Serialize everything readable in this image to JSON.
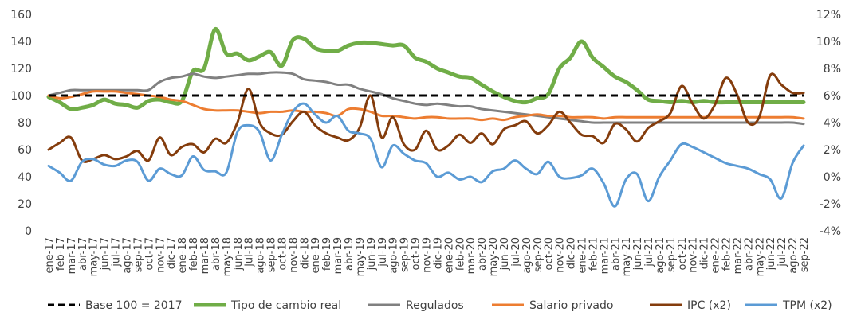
{
  "chart_data": {
    "type": "line",
    "title": "",
    "xlabel": "",
    "ylabel": "",
    "y_left": {
      "min": 0,
      "max": 160,
      "step": 20,
      "ticks": [
        "0",
        "20",
        "40",
        "60",
        "80",
        "100",
        "120",
        "140",
        "160"
      ]
    },
    "y_right": {
      "min": -4,
      "max": 12,
      "step": 2,
      "unit": "%",
      "ticks": [
        "-4%",
        "-2%",
        "0%",
        "2%",
        "4%",
        "6%",
        "8%",
        "10%",
        "12%"
      ]
    },
    "grid": false,
    "legend_position": "bottom",
    "categories": [
      "ene-17",
      "feb-17",
      "mar-17",
      "abr-17",
      "may-17",
      "jun-17",
      "jul-17",
      "ago-17",
      "sep-17",
      "oct-17",
      "nov-17",
      "dic-17",
      "ene-18",
      "feb-18",
      "mar-18",
      "abr-18",
      "may-18",
      "jun-18",
      "jul-18",
      "ago-18",
      "sep-18",
      "oct-18",
      "nov-18",
      "dic-18",
      "ene-19",
      "feb-19",
      "mar-19",
      "abr-19",
      "may-19",
      "jun-19",
      "jul-19",
      "ago-19",
      "sep-19",
      "oct-19",
      "nov-19",
      "dic-19",
      "ene-20",
      "feb-20",
      "mar-20",
      "abr-20",
      "may-20",
      "jun-20",
      "jul-20",
      "ago-20",
      "sep-20",
      "oct-20",
      "nov-20",
      "dic-20",
      "ene-21",
      "feb-21",
      "mar-21",
      "abr-21",
      "may-21",
      "jun-21",
      "jul-21",
      "ago-21",
      "sep-21",
      "oct-21",
      "nov-21",
      "dic-21",
      "ene-22",
      "feb-22",
      "mar-22",
      "abr-22",
      "may-22",
      "jun-22",
      "jul-22",
      "ago-22",
      "sep-22"
    ],
    "series": [
      {
        "name": "Base 100 = 2017",
        "axis": "left",
        "color": "#000000",
        "dashed": true,
        "width": 3,
        "values": [
          100,
          100,
          100,
          100,
          100,
          100,
          100,
          100,
          100,
          100,
          100,
          100,
          100,
          100,
          100,
          100,
          100,
          100,
          100,
          100,
          100,
          100,
          100,
          100,
          100,
          100,
          100,
          100,
          100,
          100,
          100,
          100,
          100,
          100,
          100,
          100,
          100,
          100,
          100,
          100,
          100,
          100,
          100,
          100,
          100,
          100,
          100,
          100,
          100,
          100,
          100,
          100,
          100,
          100,
          100,
          100,
          100,
          100,
          100,
          100,
          100,
          100,
          100,
          100,
          100,
          100,
          100,
          100,
          100
        ]
      },
      {
        "name": "Tipo de cambio real",
        "axis": "left",
        "color": "#70ad47",
        "width": 5,
        "values": [
          99,
          95,
          90,
          91,
          93,
          97,
          94,
          93,
          91,
          96,
          97,
          95,
          96,
          118,
          120,
          149,
          131,
          131,
          126,
          129,
          132,
          122,
          141,
          142,
          135,
          133,
          133,
          137,
          139,
          139,
          138,
          137,
          137,
          128,
          125,
          120,
          117,
          114,
          113,
          108,
          103,
          99,
          96,
          95,
          98,
          101,
          120,
          128,
          140,
          128,
          121,
          114,
          110,
          104,
          97,
          96,
          95,
          96,
          95,
          96,
          95,
          95,
          95,
          95,
          95,
          95,
          95,
          95,
          95
        ]
      },
      {
        "name": "Regulados",
        "axis": "left",
        "color": "#808080",
        "width": 3,
        "values": [
          100,
          102,
          104,
          104,
          104,
          104,
          104,
          104,
          104,
          104,
          110,
          113,
          114,
          116,
          114,
          113,
          114,
          115,
          116,
          116,
          117,
          117,
          116,
          112,
          111,
          110,
          108,
          108,
          105,
          103,
          101,
          98,
          96,
          94,
          93,
          94,
          93,
          92,
          92,
          90,
          89,
          88,
          87,
          86,
          85,
          84,
          83,
          82,
          81,
          80,
          80,
          80,
          80,
          80,
          80,
          80,
          80,
          80,
          80,
          80,
          80,
          80,
          80,
          80,
          80,
          80,
          80,
          80,
          79
        ]
      },
      {
        "name": "Salario privado",
        "axis": "left",
        "color": "#ed7d31",
        "width": 3,
        "values": [
          100,
          98,
          99,
          101,
          103,
          103,
          103,
          102,
          101,
          100,
          99,
          97,
          96,
          93,
          90,
          89,
          89,
          89,
          88,
          87,
          88,
          88,
          89,
          88,
          88,
          87,
          85,
          90,
          90,
          88,
          85,
          85,
          84,
          83,
          84,
          84,
          83,
          83,
          83,
          82,
          83,
          82,
          84,
          85,
          86,
          85,
          85,
          84,
          84,
          84,
          83,
          84,
          84,
          84,
          84,
          84,
          84,
          84,
          84,
          84,
          84,
          84,
          84,
          84,
          84,
          84,
          84,
          84,
          83
        ]
      },
      {
        "name": "IPC (x2)",
        "axis": "right",
        "color": "#843c0c",
        "width": 3,
        "values": [
          2.0,
          2.5,
          2.9,
          1.2,
          1.3,
          1.6,
          1.3,
          1.5,
          1.9,
          1.2,
          2.9,
          1.6,
          2.2,
          2.4,
          1.8,
          2.8,
          2.5,
          4.0,
          6.5,
          4.0,
          3.2,
          3.1,
          4.1,
          4.8,
          3.8,
          3.2,
          2.9,
          2.7,
          3.6,
          6.0,
          2.9,
          4.4,
          2.4,
          2.0,
          3.4,
          2.0,
          2.3,
          3.1,
          2.5,
          3.2,
          2.4,
          3.5,
          3.8,
          4.1,
          3.2,
          3.8,
          4.8,
          4.0,
          3.1,
          3.0,
          2.5,
          3.9,
          3.5,
          2.6,
          3.6,
          4.1,
          4.7,
          6.7,
          5.4,
          4.3,
          5.3,
          7.3,
          6.1,
          4.0,
          4.4,
          7.5,
          6.8,
          6.2,
          6.2
        ]
      },
      {
        "name": "TPM (x2)",
        "axis": "right",
        "color": "#5b9bd5",
        "width": 3,
        "values": [
          0.8,
          0.3,
          -0.3,
          1.1,
          1.3,
          0.9,
          0.8,
          1.2,
          1.1,
          -0.3,
          0.6,
          0.2,
          0.1,
          1.5,
          0.5,
          0.4,
          0.3,
          3.3,
          3.8,
          3.3,
          1.2,
          3.1,
          4.8,
          5.4,
          4.6,
          4.0,
          4.5,
          3.4,
          3.2,
          2.8,
          0.7,
          2.3,
          1.7,
          1.2,
          1.0,
          0.0,
          0.3,
          -0.2,
          0.0,
          -0.4,
          0.4,
          0.6,
          1.2,
          0.6,
          0.2,
          1.1,
          0.0,
          -0.1,
          0.1,
          0.6,
          -0.5,
          -2.2,
          -0.2,
          0.2,
          -1.8,
          0.0,
          1.2,
          2.4,
          2.2,
          1.8,
          1.4,
          1.0,
          0.8,
          0.6,
          0.2,
          -0.2,
          -1.6,
          1.0,
          2.3
        ]
      }
    ]
  }
}
